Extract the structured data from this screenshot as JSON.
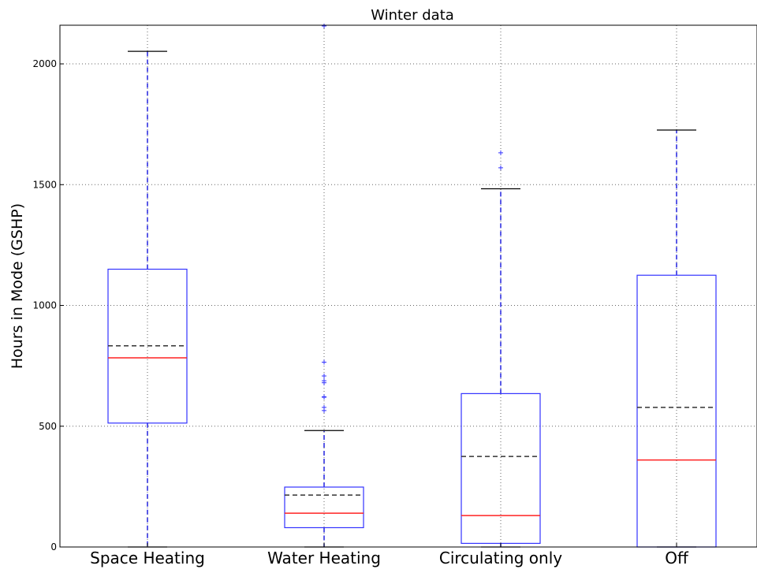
{
  "chart_data": {
    "type": "boxplot",
    "title": "Winter data",
    "xlabel": "",
    "ylabel": "Hours in Mode (GSHP)",
    "ylim": [
      0,
      2160
    ],
    "yticks": [
      0,
      500,
      1000,
      1500,
      2000
    ],
    "ytick_labels": [
      "0",
      "500",
      "1000",
      "1500",
      "2000"
    ],
    "grid": true,
    "categories": [
      "Space Heating",
      "Water Heating",
      "Circulating only",
      "Off"
    ],
    "boxes": [
      {
        "category": "Space Heating",
        "whisker_low": 0,
        "q1": 513,
        "median": 783,
        "mean": 833,
        "q3": 1150,
        "whisker_high": 2052,
        "outliers": []
      },
      {
        "category": "Water Heating",
        "whisker_low": 0,
        "q1": 80,
        "median": 140,
        "mean": 215,
        "q3": 248,
        "whisker_high": 482,
        "outliers": [
          565,
          578,
          620,
          622,
          680,
          688,
          708,
          765,
          2160
        ]
      },
      {
        "category": "Circulating only",
        "whisker_low": 0,
        "q1": 15,
        "median": 130,
        "mean": 375,
        "q3": 635,
        "whisker_high": 1483,
        "outliers": [
          1570,
          1632
        ]
      },
      {
        "category": "Off",
        "whisker_low": 0,
        "q1": 0,
        "median": 360,
        "mean": 578,
        "q3": 1125,
        "whisker_high": 1726,
        "outliers": []
      }
    ],
    "colors": {
      "box": "#3333ff",
      "whisker": "#2222dd",
      "median": "#ff2222",
      "mean": "#333333",
      "cap": "#000000",
      "grid": "#666666",
      "outlier": "#3333ff"
    }
  }
}
